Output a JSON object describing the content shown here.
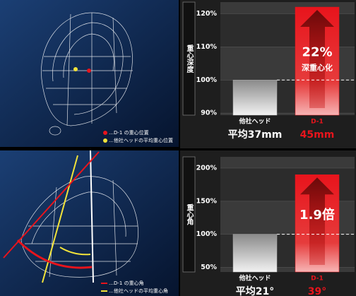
{
  "chart_data": [
    {
      "type": "bar",
      "title": "重心深度",
      "categories": [
        "他社ヘッド",
        "D-1"
      ],
      "values": [
        100,
        122
      ],
      "colors": [
        "#b0b0b0",
        "#e8141c"
      ],
      "ylim": [
        89.4,
        123.5
      ],
      "yticks": [
        {
          "value": 90,
          "label": "90%"
        },
        {
          "value": 100,
          "label": "100%"
        },
        {
          "value": 110,
          "label": "110%"
        },
        {
          "value": 120,
          "label": "120%"
        }
      ],
      "grid": true,
      "reference_line": 100,
      "annotation": "22%",
      "annotation_sub": "深重心化",
      "value_notes": [
        "平均37mm",
        "45mm"
      ]
    },
    {
      "type": "bar",
      "title": "重心角",
      "categories": [
        "他社ヘッド",
        "D-1"
      ],
      "values": [
        100,
        190
      ],
      "colors": [
        "#b0b0b0",
        "#e8141c"
      ],
      "ylim": [
        43,
        217
      ],
      "yticks": [
        {
          "value": 50,
          "label": "50%"
        },
        {
          "value": 100,
          "label": "100%"
        },
        {
          "value": 150,
          "label": "150%"
        },
        {
          "value": 200,
          "label": "200%"
        }
      ],
      "grid": true,
      "reference_line": 100,
      "annotation": "1.9倍",
      "value_notes": [
        "平均21°",
        "39°"
      ]
    }
  ],
  "illustrations": [
    {
      "legend": [
        "…D-1 の重心位置",
        "…他社ヘッドの平均重心位置"
      ]
    },
    {
      "legend": [
        "…D-1 の重心角",
        "…他社ヘッドの平均重心角"
      ]
    }
  ]
}
